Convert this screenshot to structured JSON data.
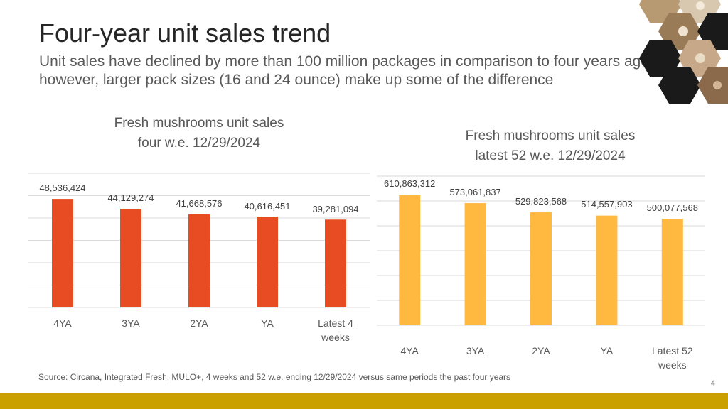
{
  "title": "Four-year unit sales trend",
  "subtitle": "Unit sales have declined by more than 100 million packages in comparison to four years ago, however, larger pack sizes (16 and 24 ounce) make up some of the difference",
  "source": "Source: Circana, Integrated Fresh, MULO+, 4 weeks and 52 w.e. ending 12/29/2024 versus same periods the past four years",
  "page_number": "4",
  "colors": {
    "left_bars": "#e84c22",
    "right_bars": "#ffb940",
    "bottom_bar": "#c9a000",
    "gridline": "#d9d9d9"
  },
  "decoration": {
    "icon": "hexagon-mushroom-photos-icon"
  },
  "chart_data": [
    {
      "type": "bar",
      "title_lines": [
        "Fresh mushrooms unit sales",
        "four w.e. 12/29/2024"
      ],
      "categories": [
        "4YA",
        "3YA",
        "2YA",
        "YA",
        "Latest 4 weeks"
      ],
      "category_lines": [
        [
          "4YA"
        ],
        [
          "3YA"
        ],
        [
          "2YA"
        ],
        [
          "YA"
        ],
        [
          "Latest 4",
          "weeks"
        ]
      ],
      "values": [
        48536424,
        44129274,
        41668576,
        40616451,
        39281094
      ],
      "value_labels": [
        "48,536,424",
        "44,129,274",
        "41,668,576",
        "40,616,451",
        "39,281,094"
      ],
      "ylim": [
        0,
        60000000
      ],
      "grid": true,
      "color": "#e84c22"
    },
    {
      "type": "bar",
      "title_lines": [
        "Fresh mushrooms unit sales",
        "latest 52 w.e. 12/29/2024"
      ],
      "categories": [
        "4YA",
        "3YA",
        "2YA",
        "YA",
        "Latest 52 weeks"
      ],
      "category_lines": [
        [
          "4YA"
        ],
        [
          "3YA"
        ],
        [
          "2YA"
        ],
        [
          "YA"
        ],
        [
          "Latest 52",
          "weeks"
        ]
      ],
      "values": [
        610863312,
        573061837,
        529823568,
        514557903,
        500077568
      ],
      "value_labels": [
        "610,863,312",
        "573,061,837",
        "529,823,568",
        "514,557,903",
        "500,077,568"
      ],
      "ylim": [
        0,
        700000000
      ],
      "grid": true,
      "color": "#ffb940"
    }
  ]
}
